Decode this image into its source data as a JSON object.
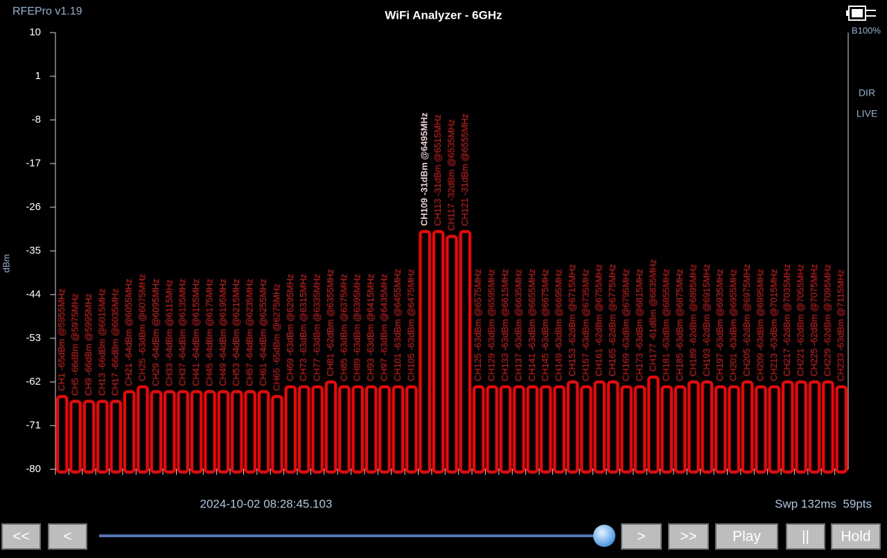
{
  "chart_data": {
    "type": "bar",
    "title": "WiFi Analyzer - 6GHz",
    "y_label": "dBm",
    "categories": [
      "CH1",
      "CH5",
      "CH9",
      "CH13",
      "CH17",
      "CH21",
      "CH25",
      "CH29",
      "CH33",
      "CH37",
      "CH41",
      "CH45",
      "CH49",
      "CH53",
      "CH57",
      "CH61",
      "CH65",
      "CH69",
      "CH73",
      "CH77",
      "CH81",
      "CH85",
      "CH89",
      "CH93",
      "CH97",
      "CH101",
      "CH105",
      "CH109",
      "CH113",
      "CH117",
      "CH121",
      "CH125",
      "CH129",
      "CH133",
      "CH137",
      "CH141",
      "CH145",
      "CH149",
      "CH153",
      "CH157",
      "CH161",
      "CH165",
      "CH169",
      "CH173",
      "CH177",
      "CH181",
      "CH185",
      "CH189",
      "CH193",
      "CH197",
      "CH201",
      "CH205",
      "CH209",
      "CH213",
      "CH217",
      "CH221",
      "CH225",
      "CH229",
      "CH233"
    ],
    "values": [
      -65,
      -66,
      -66,
      -66,
      -66,
      -64,
      -63,
      -64,
      -64,
      -64,
      -64,
      -64,
      -64,
      -64,
      -64,
      -64,
      -65,
      -63,
      -63,
      -63,
      -62,
      -63,
      -63,
      -63,
      -63,
      -63,
      -63,
      -31,
      -31,
      -32,
      -31,
      -63,
      -63,
      -63,
      -63,
      -63,
      -63,
      -63,
      -62,
      -63,
      -62,
      -62,
      -63,
      -63,
      -61,
      -63,
      -63,
      -62,
      -62,
      -63,
      -63,
      -62,
      -63,
      -63,
      -62,
      -62,
      -62,
      -62,
      -63
    ],
    "value_labels": [
      "CH1 -65dBm @5955MHz",
      "CH5 -66dBm @5975MHz",
      "CH9 -66dBm @5995MHz",
      "CH13 -66dBm @6015MHz",
      "CH17 -66dBm @6035MHz",
      "CH21 -64dBm @6055MHz",
      "CH25 -63dBm @6075MHz",
      "CH29 -64dBm @6095MHz",
      "CH33 -64dBm @6115MHz",
      "CH37 -64dBm @6135MHz",
      "CH41 -64dBm @6155MHz",
      "CH45 -64dBm @6175MHz",
      "CH49 -64dBm @6195MHz",
      "CH53 -64dBm @6215MHz",
      "CH57 -64dBm @6235MHz",
      "CH61 -64dBm @6255MHz",
      "CH65 -65dBm @6275MHz",
      "CH69 -63dBm @6295MHz",
      "CH73 -63dBm @6315MHz",
      "CH77 -63dBm @6335MHz",
      "CH81 -62dBm @6355MHz",
      "CH85 -63dBm @6375MHz",
      "CH89 -63dBm @6395MHz",
      "CH93 -63dBm @6415MHz",
      "CH97 -63dBm @6435MHz",
      "CH101 -63dBm @6455MHz",
      "CH105 -63dBm @6475MHz",
      "CH109 -31dBm @6495MHz",
      "CH113 -31dBm @6515MHz",
      "CH117 -32dBm @6535MHz",
      "CH121 -31dBm @6555MHz",
      "CH125 -63dBm @6575MHz",
      "CH129 -63dBm @6595MHz",
      "CH133 -63dBm @6615MHz",
      "CH137 -63dBm @6635MHz",
      "CH141 -63dBm @6655MHz",
      "CH145 -63dBm @6675MHz",
      "CH149 -63dBm @6695MHz",
      "CH153 -62dBm @6715MHz",
      "CH157 -63dBm @6735MHz",
      "CH161 -62dBm @6755MHz",
      "CH165 -62dBm @6775MHz",
      "CH169 -63dBm @6795MHz",
      "CH173 -63dBm @6815MHz",
      "CH177 -61dBm @6835MHz",
      "CH181 -63dBm @6855MHz",
      "CH185 -63dBm @6875MHz",
      "CH189 -62dBm @6895MHz",
      "CH193 -62dBm @6915MHz",
      "CH197 -63dBm @6935MHz",
      "CH201 -63dBm @6955MHz",
      "CH205 -62dBm @6975MHz",
      "CH209 -63dBm @6995MHz",
      "CH213 -63dBm @7015MHz",
      "CH217 -62dBm @7035MHz",
      "CH221 -62dBm @7055MHz",
      "CH225 -62dBm @7075MHz",
      "CH229 -62dBm @7095MHz",
      "CH233 -63dBm @7115MHz"
    ],
    "color": "#ff0000",
    "label_color": "#e01010",
    "peak_label_color": "#f0d0d0",
    "ylim": [
      -80,
      10
    ],
    "yticks": [
      -80,
      -71,
      -62,
      -53,
      -44,
      -35,
      -26,
      -17,
      -8,
      1,
      10
    ],
    "grid": false
  },
  "ui": {
    "app_name": "RFEPro v1.19",
    "battery": "B100%",
    "mode": "DIR",
    "status": "LIVE",
    "timestamp": "2024-10-02 08:28:45.103",
    "sweep_info": "Swp 132ms  59pts",
    "buttons": [
      "<<",
      "<",
      ">",
      ">>",
      "Play",
      "||",
      "Hold"
    ]
  }
}
